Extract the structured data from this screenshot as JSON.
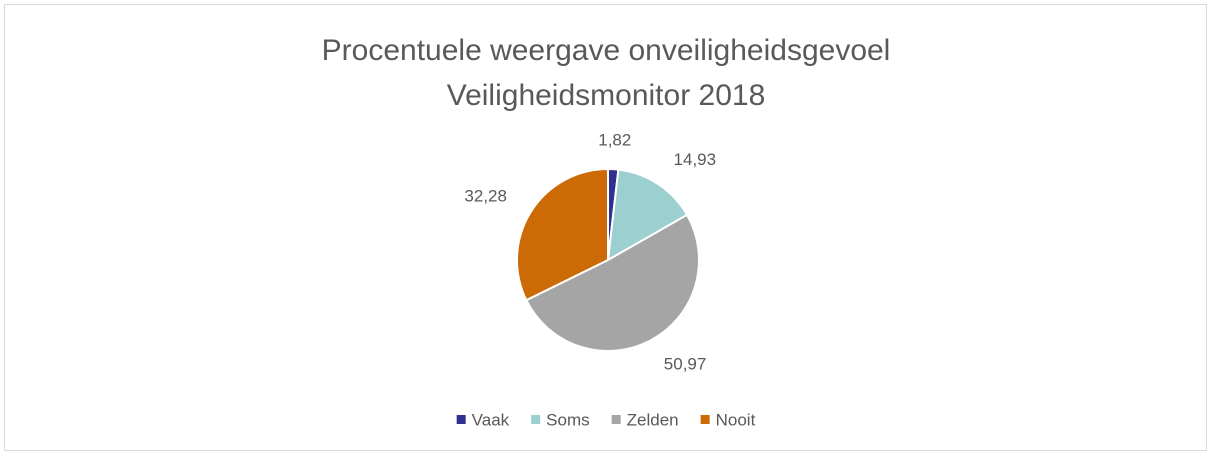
{
  "chart_data": {
    "type": "pie",
    "title": [
      "Procentuele weergave onveiligheidsgevoel",
      "Veiligheidsmonitor 2018"
    ],
    "categories": [
      "Vaak",
      "Soms",
      "Zelden",
      "Nooit"
    ],
    "values": [
      1.82,
      14.93,
      50.97,
      32.28
    ],
    "value_labels": [
      "1,82",
      "14,93",
      "50,97",
      "32,28"
    ],
    "colors": [
      "#2f3192",
      "#9ccfcf",
      "#a5a5a5",
      "#cc6a06"
    ],
    "legend": "bottom"
  }
}
